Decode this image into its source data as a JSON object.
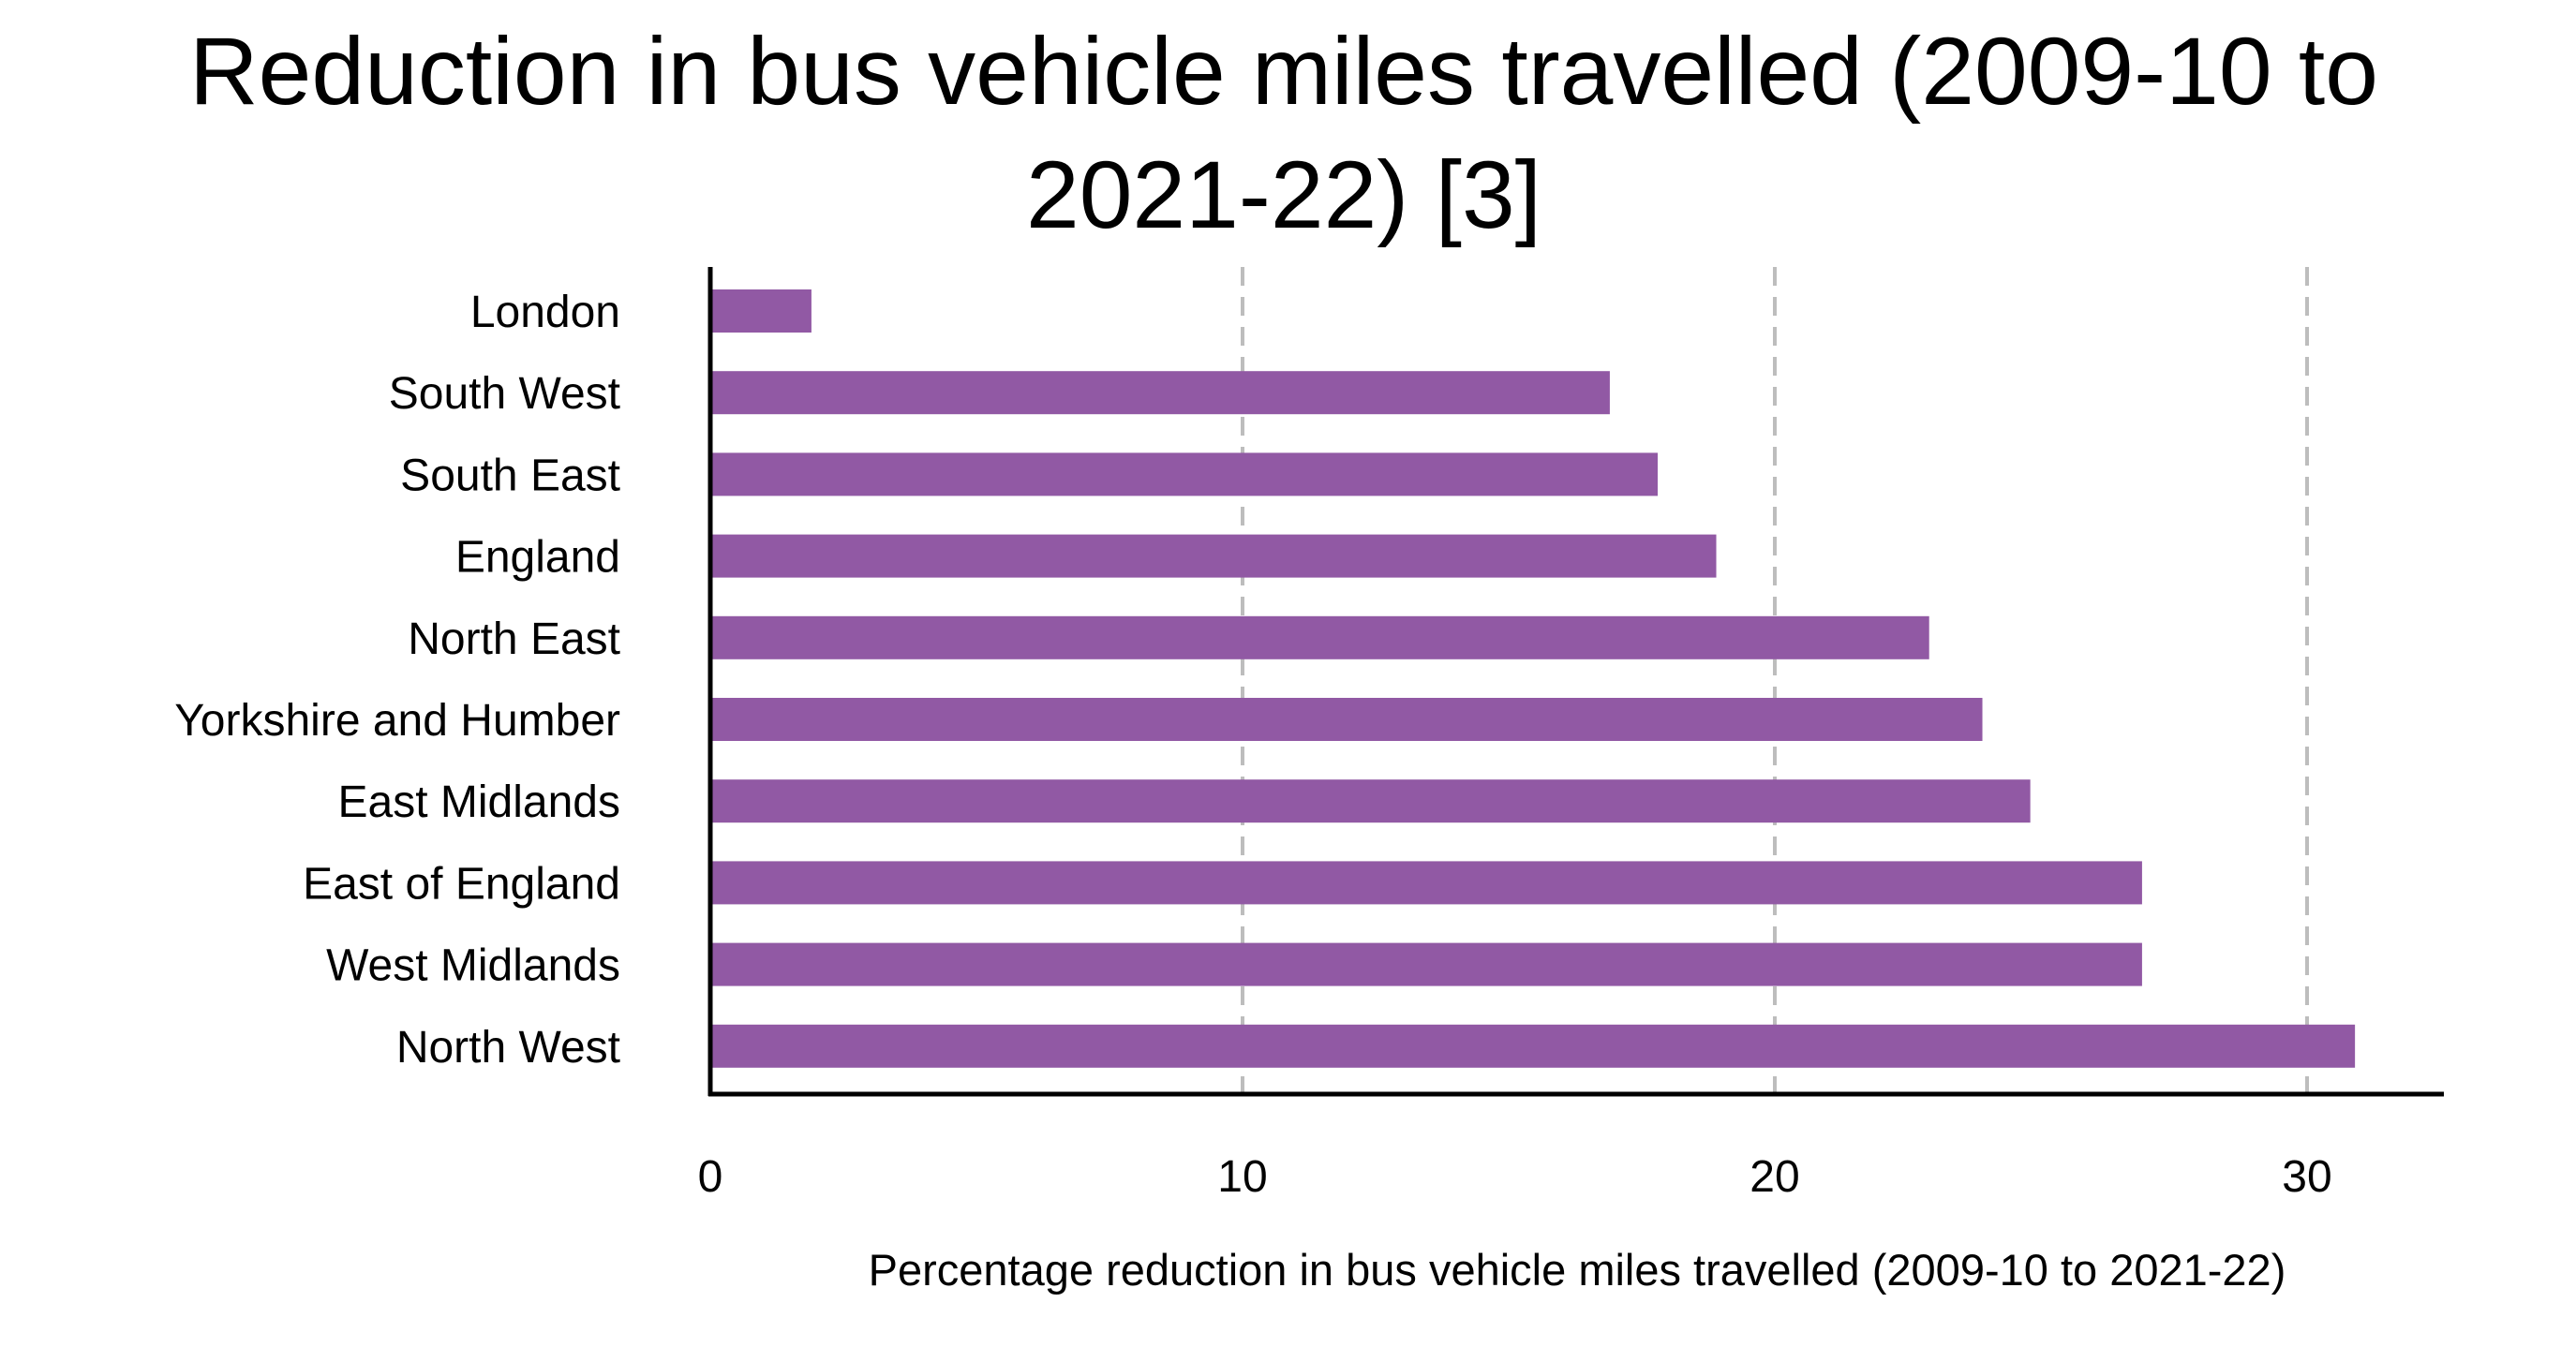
{
  "chart_data": {
    "type": "bar",
    "orientation": "horizontal",
    "title": "Reduction in bus vehicle miles travelled (2009-10 to 2021-22) [3]",
    "xlabel": "Percentage reduction in bus vehicle miles travelled (2009-10 to 2021-22)",
    "ylabel": "",
    "categories": [
      "London",
      "South West",
      "South East",
      "England",
      "North East",
      "Yorkshire and Humber",
      "East Midlands",
      "East of England",
      "West Midlands",
      "North West"
    ],
    "values": [
      1.9,
      16.9,
      17.8,
      18.9,
      22.9,
      23.9,
      24.8,
      26.9,
      26.9,
      30.9
    ],
    "xlim": [
      0,
      32.5
    ],
    "xticks": [
      0,
      10,
      20,
      30
    ],
    "xtick_labels": [
      "0",
      "10",
      "20",
      "30"
    ],
    "grid": "vertical dashed at 10, 20, 30",
    "legend": "none",
    "bar_color": "#9159a4",
    "grid_color": "#bdbdbd",
    "axis_color": "#000000"
  }
}
